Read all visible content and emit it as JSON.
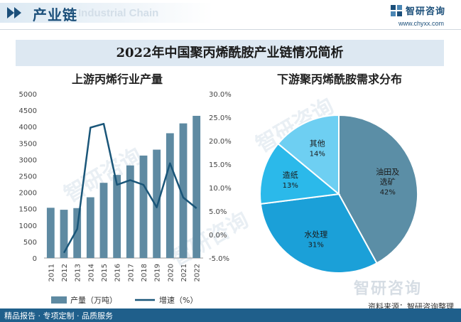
{
  "header": {
    "title": "产业链",
    "ghost_text": "Industrial Chain",
    "brand_name": "智研咨询",
    "brand_url": "www.chyxx.com"
  },
  "main_title": "2022年中国聚丙烯酰胺产业链情况简析",
  "watermark_text": "智研咨询",
  "footer": {
    "text": "精品报告 · 专项定制 · 品质服务",
    "source": "资料来源：智研咨询整理"
  },
  "colors": {
    "bar": "#5e8aa2",
    "line": "#1a5679",
    "pie": [
      "#5b8ea6",
      "#1ba0d8",
      "#2bb9ea",
      "#6ecff2"
    ],
    "header": "#1b4f7a",
    "footer": "#1f5f8b"
  },
  "chart_data": [
    {
      "type": "bar+line",
      "title": "上游丙烯行业产量",
      "categories": [
        "2011",
        "2012",
        "2013",
        "2014",
        "2015",
        "2016",
        "2017",
        "2018",
        "2019",
        "2020",
        "2021",
        "2022"
      ],
      "series": [
        {
          "name": "产量（万吨）",
          "type": "bar",
          "axis": "left",
          "values": [
            1530,
            1470,
            1520,
            1850,
            2290,
            2530,
            2820,
            3120,
            3300,
            3800,
            4100,
            4330
          ]
        },
        {
          "name": "增速（%）",
          "type": "line",
          "axis": "right",
          "values": [
            null,
            -3.9,
            1.2,
            22.8,
            23.6,
            10.6,
            11.6,
            10.6,
            5.8,
            15.2,
            7.9,
            5.6
          ]
        }
      ],
      "y_left": {
        "min": 0,
        "max": 5000,
        "step": 500,
        "ticks": [
          "0",
          "500",
          "1000",
          "1500",
          "2000",
          "2500",
          "3000",
          "3500",
          "4000",
          "4500",
          "5000"
        ]
      },
      "y_right": {
        "min": -5,
        "max": 30,
        "step": 5,
        "ticks": [
          "-5.0%",
          "0.0%",
          "5.0%",
          "10.0%",
          "15.0%",
          "20.0%",
          "25.0%",
          "30.0%"
        ]
      },
      "legend": "bottom"
    },
    {
      "type": "pie",
      "title": "下游聚丙烯酰胺需求分布",
      "slices": [
        {
          "label": "油田及选矿",
          "label_lines": [
            "油田及",
            "选矿"
          ],
          "value": 42,
          "display": "42%"
        },
        {
          "label": "水处理",
          "label_lines": [
            "水处理"
          ],
          "value": 31,
          "display": "31%"
        },
        {
          "label": "造纸",
          "label_lines": [
            "造纸"
          ],
          "value": 13,
          "display": "13%"
        },
        {
          "label": "其他",
          "label_lines": [
            "其他"
          ],
          "value": 14,
          "display": "14%"
        }
      ]
    }
  ]
}
